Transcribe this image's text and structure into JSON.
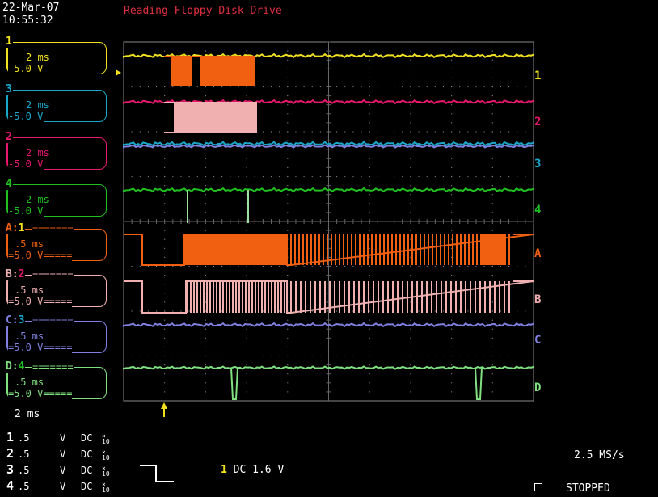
{
  "header": {
    "date": "22-Mar-07",
    "time": "10:55:32",
    "title": "Reading Floppy Disk Drive"
  },
  "colors": {
    "ch1": "#f0e020",
    "ch2": "#e8186e",
    "ch3": "#1aa8c8",
    "ch4": "#20c020",
    "mathA": "#f06010",
    "mathB": "#f0b0b0",
    "mathC": "#8080e0",
    "mathD": "#80e080",
    "grid": "#888888"
  },
  "channels": [
    {
      "label": "1",
      "time": "2 ms",
      "volt": "5.0 V",
      "color": "#f0e020"
    },
    {
      "label": "3",
      "time": "2 ms",
      "volt": "5.0 V",
      "color": "#1aa8c8"
    },
    {
      "label": "2",
      "time": "2 ms",
      "volt": "5.0 V",
      "color": "#e8186e"
    },
    {
      "label": "4",
      "time": "2 ms",
      "volt": "5.0 V",
      "color": "#20c020"
    }
  ],
  "math": [
    {
      "label": "A",
      "src": "1",
      "time": ".5 ms",
      "volt": "5.0 V",
      "color": "#f06010",
      "srccolor": "#f0e020"
    },
    {
      "label": "B",
      "src": "2",
      "time": ".5 ms",
      "volt": "5.0 V",
      "color": "#f0b0b0",
      "srccolor": "#e8186e"
    },
    {
      "label": "C",
      "src": "3",
      "time": ".5 ms",
      "volt": "5.0 V",
      "color": "#8080e0",
      "srccolor": "#1aa8c8"
    },
    {
      "label": "D",
      "src": "4",
      "time": ".5 ms",
      "volt": "5.0 V",
      "color": "#80e080",
      "srccolor": "#20c020"
    }
  ],
  "math_fill": "=======",
  "math_volt_fill": "=====",
  "timebase": "2 ms",
  "vertical": [
    {
      "n": "1",
      "scale": ".5",
      "unit": "V",
      "coupling": "DC",
      "probe": "10"
    },
    {
      "n": "2",
      "scale": ".5",
      "unit": "V",
      "coupling": "DC",
      "probe": "10"
    },
    {
      "n": "3",
      "scale": ".5",
      "unit": "V",
      "coupling": "DC",
      "probe": "10"
    },
    {
      "n": "4",
      "scale": ".5",
      "unit": "V",
      "coupling": "DC",
      "probe": "10"
    }
  ],
  "trigger": {
    "source": "1",
    "coupling": "DC",
    "level": "1.6 V"
  },
  "sample_rate": "2.5 MS/s",
  "run_status": "STOPPED",
  "right_markers": [
    "1",
    "2",
    "3",
    "4",
    "A",
    "B",
    "C",
    "D"
  ]
}
